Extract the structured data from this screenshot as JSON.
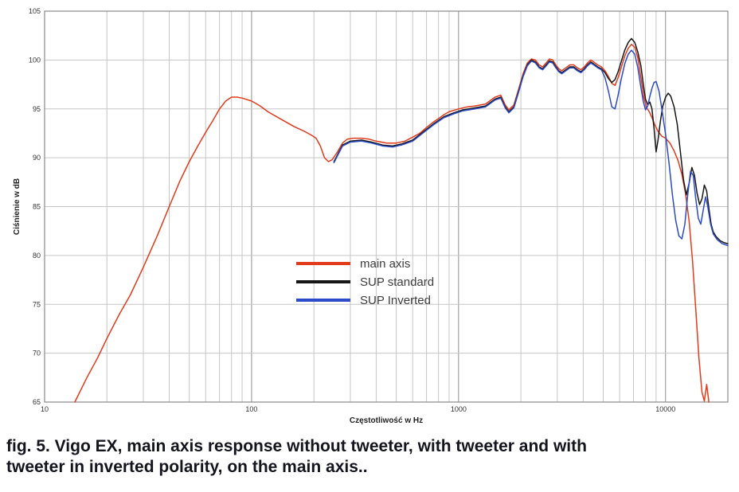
{
  "caption": "fig. 5. Vigo EX, main axis response without tweeter, with tweeter and with tweeter in inverted polarity, on the main axis..",
  "chart_data": {
    "type": "line",
    "x_scale": "log",
    "xlabel": "Częstotliwość w Hz",
    "ylabel": "Ciśnienie w dB",
    "xlim": [
      10,
      20000
    ],
    "ylim": [
      65,
      105
    ],
    "x_ticks": [
      10,
      100,
      1000,
      10000
    ],
    "y_ticks": [
      65,
      70,
      75,
      80,
      85,
      90,
      95,
      100,
      105
    ],
    "grid": true,
    "legend_position": "center",
    "series": [
      {
        "name": "main axis",
        "color": "#e23b1c",
        "points": [
          [
            14,
            65
          ],
          [
            16,
            67.5
          ],
          [
            18,
            69.5
          ],
          [
            20,
            71.5
          ],
          [
            23,
            74
          ],
          [
            26,
            76
          ],
          [
            30,
            78.8
          ],
          [
            35,
            82
          ],
          [
            40,
            85
          ],
          [
            45,
            87.6
          ],
          [
            50,
            89.6
          ],
          [
            55,
            91.2
          ],
          [
            60,
            92.6
          ],
          [
            65,
            93.8
          ],
          [
            70,
            95
          ],
          [
            75,
            95.8
          ],
          [
            80,
            96.2
          ],
          [
            85,
            96.2
          ],
          [
            90,
            96.1
          ],
          [
            100,
            95.8
          ],
          [
            110,
            95.3
          ],
          [
            120,
            94.7
          ],
          [
            140,
            93.9
          ],
          [
            160,
            93.2
          ],
          [
            180,
            92.7
          ],
          [
            195,
            92.3
          ],
          [
            205,
            92
          ],
          [
            215,
            91.2
          ],
          [
            225,
            90
          ],
          [
            235,
            89.6
          ],
          [
            245,
            89.8
          ],
          [
            260,
            90.6
          ],
          [
            275,
            91.5
          ],
          [
            290,
            91.9
          ],
          [
            310,
            92
          ],
          [
            340,
            92
          ],
          [
            370,
            91.9
          ],
          [
            400,
            91.7
          ],
          [
            450,
            91.5
          ],
          [
            500,
            91.5
          ],
          [
            550,
            91.7
          ],
          [
            600,
            92.1
          ],
          [
            650,
            92.5
          ],
          [
            700,
            93.1
          ],
          [
            750,
            93.6
          ],
          [
            800,
            94
          ],
          [
            850,
            94.4
          ],
          [
            900,
            94.7
          ],
          [
            1000,
            95
          ],
          [
            1100,
            95.2
          ],
          [
            1200,
            95.3
          ],
          [
            1350,
            95.5
          ],
          [
            1500,
            96.2
          ],
          [
            1600,
            96.4
          ],
          [
            1680,
            95.4
          ],
          [
            1750,
            94.9
          ],
          [
            1850,
            95.4
          ],
          [
            1950,
            97
          ],
          [
            2050,
            98.6
          ],
          [
            2150,
            99.7
          ],
          [
            2250,
            100.1
          ],
          [
            2350,
            100
          ],
          [
            2450,
            99.5
          ],
          [
            2550,
            99.3
          ],
          [
            2650,
            99.7
          ],
          [
            2750,
            100.1
          ],
          [
            2850,
            100
          ],
          [
            2950,
            99.5
          ],
          [
            3050,
            99.1
          ],
          [
            3150,
            98.9
          ],
          [
            3300,
            99.2
          ],
          [
            3450,
            99.5
          ],
          [
            3600,
            99.5
          ],
          [
            3750,
            99.2
          ],
          [
            3900,
            99
          ],
          [
            4050,
            99.3
          ],
          [
            4200,
            99.7
          ],
          [
            4350,
            100
          ],
          [
            4500,
            99.8
          ],
          [
            4700,
            99.5
          ],
          [
            4900,
            99.3
          ],
          [
            5100,
            98.9
          ],
          [
            5300,
            98.3
          ],
          [
            5500,
            97.6
          ],
          [
            5700,
            97.4
          ],
          [
            5900,
            98.2
          ],
          [
            6100,
            99.2
          ],
          [
            6350,
            100.4
          ],
          [
            6600,
            101.2
          ],
          [
            6850,
            101.6
          ],
          [
            7100,
            101.3
          ],
          [
            7350,
            100.2
          ],
          [
            7600,
            98.2
          ],
          [
            7850,
            96.2
          ],
          [
            8100,
            95.1
          ],
          [
            8350,
            94.7
          ],
          [
            8600,
            94.1
          ],
          [
            8900,
            93.3
          ],
          [
            9200,
            92.7
          ],
          [
            9600,
            92.2
          ],
          [
            10000,
            92
          ],
          [
            10500,
            91.5
          ],
          [
            11000,
            90.7
          ],
          [
            11500,
            89.7
          ],
          [
            12000,
            88.3
          ],
          [
            12500,
            86.3
          ],
          [
            13000,
            83.5
          ],
          [
            13500,
            79.5
          ],
          [
            14000,
            74.5
          ],
          [
            14500,
            69.5
          ],
          [
            15000,
            66
          ],
          [
            15400,
            65.1
          ],
          [
            15800,
            66.8
          ],
          [
            16200,
            65
          ]
        ]
      },
      {
        "name": "SUP standard",
        "color": "#161616",
        "points": [
          [
            250,
            89.6
          ],
          [
            275,
            91.3
          ],
          [
            300,
            91.7
          ],
          [
            340,
            91.8
          ],
          [
            380,
            91.6
          ],
          [
            430,
            91.3
          ],
          [
            480,
            91.2
          ],
          [
            530,
            91.4
          ],
          [
            600,
            91.8
          ],
          [
            680,
            92.7
          ],
          [
            760,
            93.5
          ],
          [
            850,
            94.2
          ],
          [
            950,
            94.6
          ],
          [
            1050,
            94.9
          ],
          [
            1200,
            95.1
          ],
          [
            1350,
            95.3
          ],
          [
            1500,
            96
          ],
          [
            1600,
            96.2
          ],
          [
            1680,
            95.2
          ],
          [
            1750,
            94.7
          ],
          [
            1850,
            95.2
          ],
          [
            1950,
            96.8
          ],
          [
            2050,
            98.4
          ],
          [
            2150,
            99.5
          ],
          [
            2250,
            100
          ],
          [
            2350,
            99.8
          ],
          [
            2450,
            99.3
          ],
          [
            2550,
            99.1
          ],
          [
            2650,
            99.5
          ],
          [
            2750,
            99.9
          ],
          [
            2850,
            99.8
          ],
          [
            2950,
            99.3
          ],
          [
            3050,
            98.9
          ],
          [
            3150,
            98.7
          ],
          [
            3300,
            99
          ],
          [
            3450,
            99.3
          ],
          [
            3600,
            99.3
          ],
          [
            3750,
            99
          ],
          [
            3900,
            98.8
          ],
          [
            4050,
            99.1
          ],
          [
            4200,
            99.5
          ],
          [
            4350,
            99.8
          ],
          [
            4500,
            99.6
          ],
          [
            4700,
            99.3
          ],
          [
            4900,
            99.1
          ],
          [
            5100,
            98.7
          ],
          [
            5300,
            98.1
          ],
          [
            5500,
            97.7
          ],
          [
            5700,
            98
          ],
          [
            5900,
            98.8
          ],
          [
            6100,
            99.8
          ],
          [
            6350,
            101
          ],
          [
            6600,
            101.8
          ],
          [
            6850,
            102.2
          ],
          [
            7100,
            101.8
          ],
          [
            7350,
            100.8
          ],
          [
            7600,
            99.4
          ],
          [
            7800,
            97.6
          ],
          [
            8000,
            96
          ],
          [
            8200,
            95.4
          ],
          [
            8400,
            95.7
          ],
          [
            8600,
            95
          ],
          [
            8800,
            93
          ],
          [
            9000,
            90.6
          ],
          [
            9200,
            91.8
          ],
          [
            9450,
            93.8
          ],
          [
            9700,
            95.3
          ],
          [
            10000,
            96.2
          ],
          [
            10300,
            96.6
          ],
          [
            10600,
            96.3
          ],
          [
            11000,
            95.2
          ],
          [
            11400,
            93.4
          ],
          [
            11800,
            90.6
          ],
          [
            12200,
            87.8
          ],
          [
            12600,
            86.2
          ],
          [
            13000,
            87.4
          ],
          [
            13400,
            89
          ],
          [
            13800,
            88.2
          ],
          [
            14200,
            86.4
          ],
          [
            14600,
            85.2
          ],
          [
            15000,
            85.8
          ],
          [
            15400,
            87.2
          ],
          [
            15800,
            86.6
          ],
          [
            16200,
            84.8
          ],
          [
            16600,
            83.2
          ],
          [
            17000,
            82.4
          ],
          [
            17600,
            81.9
          ],
          [
            18400,
            81.5
          ],
          [
            19200,
            81.3
          ],
          [
            20000,
            81.2
          ]
        ]
      },
      {
        "name": "SUP Inverted",
        "color": "#2b4bc8",
        "points": [
          [
            250,
            89.5
          ],
          [
            275,
            91.2
          ],
          [
            300,
            91.6
          ],
          [
            340,
            91.7
          ],
          [
            380,
            91.5
          ],
          [
            430,
            91.2
          ],
          [
            480,
            91.1
          ],
          [
            530,
            91.3
          ],
          [
            600,
            91.7
          ],
          [
            680,
            92.6
          ],
          [
            760,
            93.4
          ],
          [
            850,
            94.1
          ],
          [
            950,
            94.5
          ],
          [
            1050,
            94.8
          ],
          [
            1200,
            95
          ],
          [
            1350,
            95.2
          ],
          [
            1500,
            95.9
          ],
          [
            1600,
            96.1
          ],
          [
            1680,
            95.1
          ],
          [
            1750,
            94.6
          ],
          [
            1850,
            95.1
          ],
          [
            1950,
            96.7
          ],
          [
            2050,
            98.3
          ],
          [
            2150,
            99.4
          ],
          [
            2250,
            99.9
          ],
          [
            2350,
            99.7
          ],
          [
            2450,
            99.2
          ],
          [
            2550,
            99
          ],
          [
            2650,
            99.4
          ],
          [
            2750,
            99.8
          ],
          [
            2850,
            99.7
          ],
          [
            2950,
            99.2
          ],
          [
            3050,
            98.8
          ],
          [
            3150,
            98.6
          ],
          [
            3300,
            98.9
          ],
          [
            3450,
            99.2
          ],
          [
            3600,
            99.2
          ],
          [
            3750,
            98.9
          ],
          [
            3900,
            98.7
          ],
          [
            4050,
            99
          ],
          [
            4200,
            99.4
          ],
          [
            4350,
            99.7
          ],
          [
            4500,
            99.5
          ],
          [
            4700,
            99.2
          ],
          [
            4900,
            99
          ],
          [
            5100,
            98.2
          ],
          [
            5300,
            96.8
          ],
          [
            5500,
            95.2
          ],
          [
            5700,
            95
          ],
          [
            5900,
            96.4
          ],
          [
            6100,
            98
          ],
          [
            6350,
            99.6
          ],
          [
            6600,
            100.6
          ],
          [
            6850,
            101
          ],
          [
            7100,
            100.6
          ],
          [
            7350,
            99.2
          ],
          [
            7600,
            97.2
          ],
          [
            7800,
            95.8
          ],
          [
            8000,
            94.9
          ],
          [
            8200,
            95.3
          ],
          [
            8400,
            96.3
          ],
          [
            8600,
            97.1
          ],
          [
            8800,
            97.7
          ],
          [
            9000,
            97.8
          ],
          [
            9300,
            96.8
          ],
          [
            9600,
            95
          ],
          [
            10000,
            92.4
          ],
          [
            10400,
            89.4
          ],
          [
            10800,
            86.2
          ],
          [
            11200,
            83.6
          ],
          [
            11600,
            82
          ],
          [
            12000,
            81.7
          ],
          [
            12400,
            83.2
          ],
          [
            12800,
            86.2
          ],
          [
            13200,
            88.6
          ],
          [
            13600,
            88.2
          ],
          [
            14000,
            85.8
          ],
          [
            14400,
            83.8
          ],
          [
            14800,
            83.2
          ],
          [
            15200,
            84.6
          ],
          [
            15600,
            86
          ],
          [
            16000,
            85
          ],
          [
            16500,
            83.2
          ],
          [
            17000,
            82.2
          ],
          [
            17800,
            81.6
          ],
          [
            18800,
            81.2
          ],
          [
            20000,
            81
          ]
        ]
      }
    ]
  }
}
